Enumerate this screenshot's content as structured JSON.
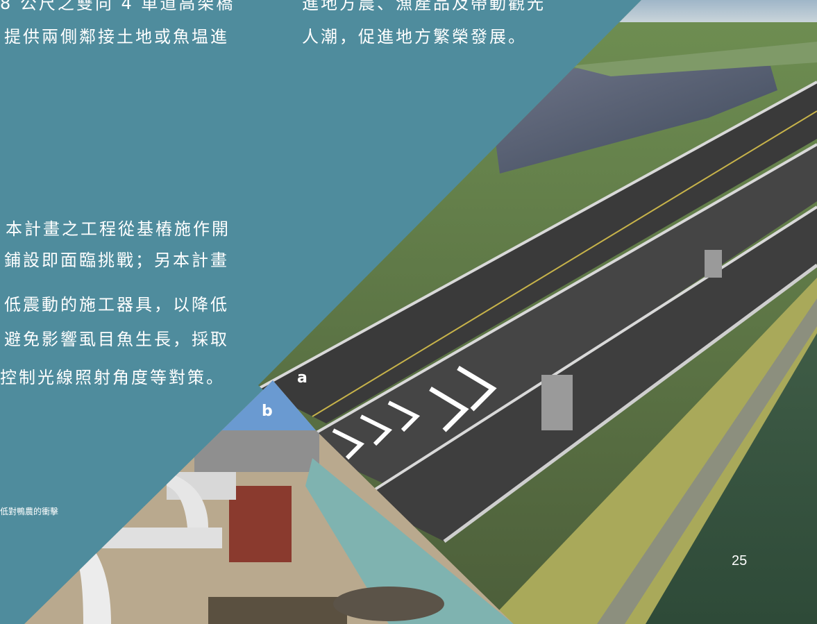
{
  "left_column": {
    "top_lines": [
      "8 公尺之雙向 4 車道高架橋",
      "提供兩側鄰接土地或魚塭進"
    ],
    "body_lines": [
      "本計畫之工程從基樁施作開",
      "鋪設即面臨挑戰；另本計畫",
      "低震動的施工器具，以降低",
      "避免影響虱目魚生長，採取",
      "控制光線照射角度等對策。"
    ],
    "caption": "低對鴨農的衝擊"
  },
  "right_column": {
    "top_lines": [
      "進地方農、漁產品及帶動觀光",
      "人潮，促進地方繁榮發展。"
    ]
  },
  "photo_labels": {
    "a": "a",
    "b": "b"
  },
  "page_number": "25",
  "colors": {
    "teal": "#4f8c9d",
    "sky": "#6a9ad1",
    "text": "#ffffff"
  }
}
